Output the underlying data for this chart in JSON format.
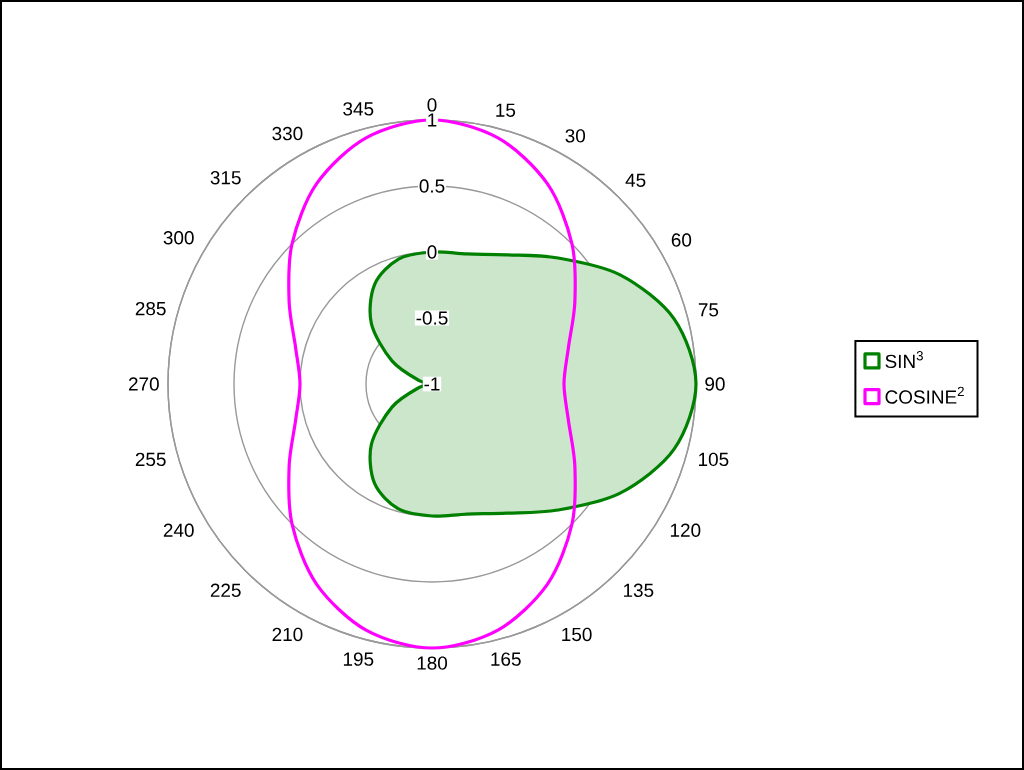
{
  "chart_data": {
    "type": "radar",
    "categories": [
      "0",
      "15",
      "30",
      "45",
      "60",
      "75",
      "90",
      "105",
      "120",
      "135",
      "150",
      "165",
      "180",
      "195",
      "210",
      "225",
      "240",
      "255",
      "270",
      "285",
      "300",
      "315",
      "330",
      "345"
    ],
    "series": [
      {
        "name": "SIN$^{3}$",
        "type": "area",
        "color": "#008000",
        "values": [
          0,
          0.02,
          0.13,
          0.35,
          0.65,
          0.9,
          1,
          0.9,
          0.65,
          0.35,
          0.13,
          0.02,
          0,
          -0.02,
          -0.13,
          -0.35,
          -0.65,
          -0.9,
          -1,
          -0.9,
          -0.65,
          -0.35,
          -0.13,
          -0.02
        ]
      },
      {
        "name": "COSINE$^{2}$",
        "color": "#ff00ff",
        "values": [
          1,
          0.93,
          0.75,
          0.5,
          0.25,
          0.07,
          0,
          0.07,
          0.25,
          0.5,
          0.75,
          0.93,
          1,
          0.93,
          0.75,
          0.5,
          0.25,
          0.07,
          0,
          0.07,
          0.25,
          0.5,
          0.75,
          0.93
        ]
      }
    ],
    "ylim": [
      -1,
      1
    ],
    "yticks": [
      -1,
      -0.5,
      0,
      0.5,
      1
    ],
    "grid": true,
    "legend": "right",
    "marker": "none"
  }
}
